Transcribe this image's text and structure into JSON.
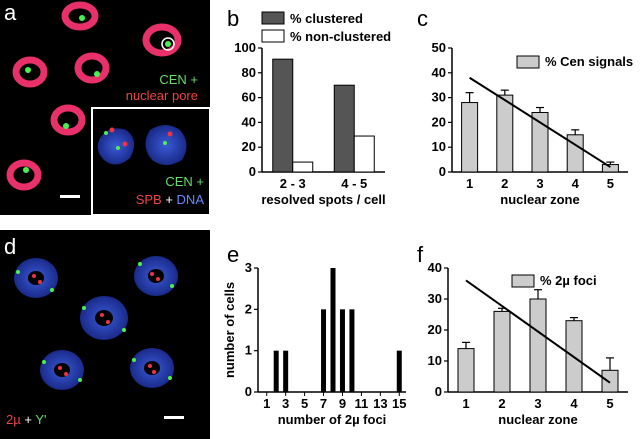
{
  "panels": {
    "a": {
      "label": "a",
      "caption_lines": [
        {
          "text": "CEN +",
          "color": "#66dd66"
        },
        {
          "text": "nuclear pore",
          "color": "#ee4444"
        }
      ],
      "inset_caption": {
        "line1": "CEN +",
        "line2_a": "SPB",
        "line2_plus": " + ",
        "line2_b": "DNA",
        "colors": {
          "cen": "#66dd66",
          "spb": "#ee4444",
          "dna": "#6688ff"
        }
      }
    },
    "d": {
      "label": "d",
      "caption": {
        "a": "2µ",
        "plus": " + ",
        "b": "Y'"
      },
      "colors": {
        "a": "#ee4444",
        "b": "#66dd66"
      }
    }
  },
  "chart_data": [
    {
      "panel": "b",
      "type": "bar",
      "categories": [
        "2 - 3",
        "4 - 5"
      ],
      "series": [
        {
          "name": "% clustered",
          "values": [
            91,
            70
          ],
          "color": "#555555"
        },
        {
          "name": "% non-clustered",
          "values": [
            8,
            29
          ],
          "color": "#ffffff"
        }
      ],
      "xlabel": "resolved spots / cell",
      "ylabel": "",
      "ylim": [
        0,
        100
      ],
      "yticks": [
        "0",
        "20",
        "40",
        "60",
        "80",
        "100"
      ],
      "legend": "top"
    },
    {
      "panel": "c",
      "type": "bar",
      "categories": [
        "1",
        "2",
        "3",
        "4",
        "5"
      ],
      "series": [
        {
          "name": "% Cen signals",
          "values": [
            28,
            31,
            24,
            15,
            3
          ],
          "errors": [
            4,
            2,
            2,
            2,
            1
          ],
          "color": "#cccccc"
        }
      ],
      "trendline": [
        38,
        2
      ],
      "xlabel": "nuclear zone",
      "ylabel": "",
      "ylim": [
        0,
        50
      ],
      "yticks": [
        "0",
        "10",
        "20",
        "30",
        "40",
        "50"
      ],
      "legend": "top-right"
    },
    {
      "panel": "e",
      "type": "bar",
      "categories": [
        "1",
        "2",
        "3",
        "4",
        "5",
        "6",
        "7",
        "8",
        "9",
        "10",
        "11",
        "12",
        "13",
        "14",
        "15"
      ],
      "values": [
        0,
        1,
        1,
        0,
        0,
        0,
        2,
        3,
        2,
        2,
        0,
        0,
        0,
        0,
        1
      ],
      "xticks": [
        "1",
        "3",
        "5",
        "7",
        "9",
        "11",
        "13",
        "15"
      ],
      "xlabel": "number of 2µ foci",
      "ylabel": "number of cells",
      "ylim": [
        0,
        3
      ],
      "yticks": [
        "0",
        "1",
        "2",
        "3"
      ]
    },
    {
      "panel": "f",
      "type": "bar",
      "categories": [
        "1",
        "2",
        "3",
        "4",
        "5"
      ],
      "series": [
        {
          "name": "% 2µ foci",
          "values": [
            14,
            26,
            30,
            23,
            7
          ],
          "errors": [
            2,
            1,
            3,
            1,
            4
          ],
          "color": "#cccccc"
        }
      ],
      "trendline": [
        36,
        3
      ],
      "xlabel": "nuclear zone",
      "ylabel": "",
      "ylim": [
        0,
        40
      ],
      "yticks": [
        "0",
        "10",
        "20",
        "30",
        "40"
      ],
      "legend": "top-right"
    }
  ]
}
